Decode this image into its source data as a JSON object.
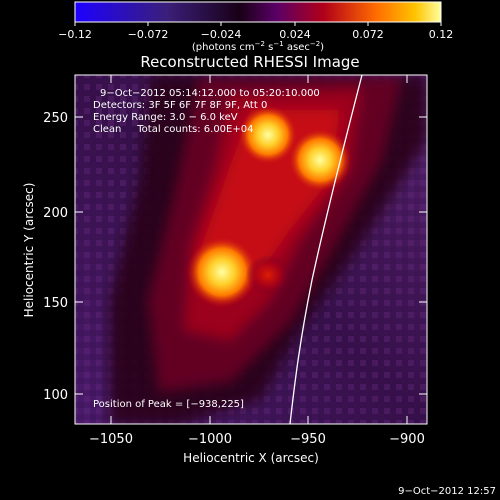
{
  "colorbar": {
    "ticks": [
      "−0.12",
      "−0.072",
      "−0.024",
      "0.024",
      "0.072",
      "0.12"
    ],
    "units_label": "(photons cm",
    "units_exp1": "−2",
    "units_mid": " s",
    "units_exp2": "−1",
    "units_mid2": " asec",
    "units_exp3": "−2",
    "units_end": ")"
  },
  "title": "Reconstructed RHESSI Image",
  "annotations": {
    "time_range": "9−Oct−2012 05:14:12.000 to 05:20:10.000",
    "detectors": "Detectors: 3F 5F 6F 7F 8F 9F, Att 0",
    "energy_range": "Energy Range: 3.0 − 6.0 keV",
    "clean": "Clean     Total counts: 6.00E+04",
    "peak": "Position of Peak = [−938,225]"
  },
  "axes": {
    "xlabel": "Heliocentric X (arcsec)",
    "ylabel": "Heliocentric Y (arcsec)",
    "xticks": [
      "−1050",
      "−1000",
      "−950",
      "−900"
    ],
    "yticks": [
      "250",
      "200",
      "150",
      "100"
    ]
  },
  "footer": {
    "timestamp": "9−Oct−2012 12:57"
  },
  "colors": {
    "background": "#000000",
    "negative": "#1e00ff",
    "positive_low": "#b10019",
    "positive_high": "#ffffa0",
    "limb_line": "#ffffff"
  },
  "image_features": {
    "sources": [
      {
        "x": -938,
        "y": 225
      },
      {
        "x": -965,
        "y": 243
      },
      {
        "x": -993,
        "y": 166
      }
    ]
  }
}
